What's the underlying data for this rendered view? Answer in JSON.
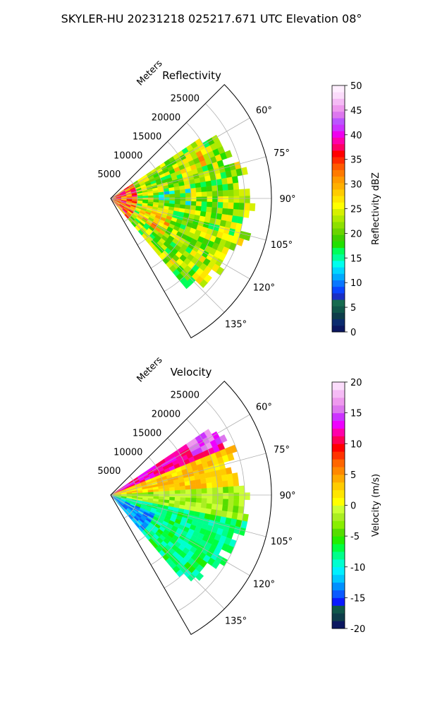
{
  "figure": {
    "title": "SKYLER-HU  20231218  025217.671 UTC Elevation 08°"
  },
  "colors": {
    "reflectivity_scale": [
      "#0b1760",
      "#0b2b6e",
      "#0e3d4a",
      "#10574a",
      "#166b4f",
      "#1a2fc4",
      "#0a46ff",
      "#0a77ff",
      "#00aaff",
      "#00d6ff",
      "#00ffee",
      "#00ff9a",
      "#00ff5a",
      "#22e000",
      "#3fd000",
      "#6ad400",
      "#8de000",
      "#b0ea00",
      "#d6f000",
      "#ffff00",
      "#ffe600",
      "#ffcc00",
      "#ffb000",
      "#ff9a00",
      "#ff7a00",
      "#ff5a00",
      "#ff2a00",
      "#ff0000",
      "#ff0066",
      "#ff00aa",
      "#ee00ee",
      "#cc33ff",
      "#bb55ff",
      "#dd77ee",
      "#ee99ee",
      "#f5bbf5",
      "#fbdcfb",
      "#ffeeff"
    ],
    "velocity_scale": [
      "#0b1760",
      "#0e3d4a",
      "#10574a",
      "#0a1aff",
      "#0a5aff",
      "#0090ff",
      "#00c8ff",
      "#00f0ff",
      "#00ffd0",
      "#00ff8a",
      "#00ff40",
      "#22ee00",
      "#55dd00",
      "#88ee00",
      "#aaee22",
      "#ccff33",
      "#ffff00",
      "#ffe600",
      "#ffcc00",
      "#ffaa00",
      "#ff8800",
      "#ff6600",
      "#ff3300",
      "#ff0000",
      "#ff0055",
      "#ff00aa",
      "#ee00ff",
      "#cc33ff",
      "#dd77ee",
      "#ee99ee",
      "#f5bbf5",
      "#fbdcfb"
    ]
  },
  "chart_data": [
    {
      "type": "heatmap",
      "subtype": "polar-sector-ppi",
      "title": "Reflectivity",
      "radial_label": "Meters",
      "radial_ticks": [
        5000,
        10000,
        15000,
        20000,
        25000
      ],
      "radial_tick_labels": [
        "5000",
        "10000",
        "15000",
        "20000",
        "25000"
      ],
      "rmax": 30000,
      "angle_range_deg": [
        45,
        150
      ],
      "angle_ticks_deg": [
        60,
        75,
        90,
        105,
        120,
        135
      ],
      "angle_tick_labels": [
        "60°",
        "75°",
        "90°",
        "105°",
        "120°",
        "135°"
      ],
      "grid": true,
      "colorbar": {
        "label": "Reflectivity dBZ",
        "min": 0,
        "max": 50,
        "ticks": [
          0,
          5,
          10,
          15,
          20,
          25,
          30,
          35,
          40,
          45,
          50
        ],
        "tick_labels": [
          "0",
          "5",
          "10",
          "15",
          "20",
          "25",
          "30",
          "35",
          "40",
          "45",
          "50"
        ],
        "placement": "right"
      },
      "field": {
        "echo_azimuth_range_deg": [
          56,
          140
        ],
        "echo_max_range_m": 26000,
        "typical_value": 22,
        "near_range_value": 33,
        "value_range": [
          14,
          36
        ]
      }
    },
    {
      "type": "heatmap",
      "subtype": "polar-sector-ppi",
      "title": "Velocity",
      "radial_label": "Meters",
      "radial_ticks": [
        5000,
        10000,
        15000,
        20000,
        25000
      ],
      "radial_tick_labels": [
        "5000",
        "10000",
        "15000",
        "20000",
        "25000"
      ],
      "rmax": 30000,
      "angle_range_deg": [
        45,
        150
      ],
      "angle_ticks_deg": [
        60,
        75,
        90,
        105,
        120,
        135
      ],
      "angle_tick_labels": [
        "60°",
        "75°",
        "90°",
        "105°",
        "120°",
        "135°"
      ],
      "grid": true,
      "colorbar": {
        "label": "Velocity (m/s)",
        "min": -20,
        "max": 20,
        "ticks": [
          -20,
          -15,
          -10,
          -5,
          0,
          5,
          10,
          15,
          20
        ],
        "tick_labels": [
          "-20",
          "-15",
          "-10",
          "-5",
          "0",
          "5",
          "10",
          "15",
          "20"
        ],
        "placement": "right"
      },
      "field": {
        "echo_azimuth_range_deg": [
          56,
          140
        ],
        "echo_max_range_m": 26000,
        "north_side_value": 12,
        "mid_value": 3,
        "east_value": -2,
        "south_side_value": -8,
        "near_range_south_value": -13,
        "value_range": [
          -13,
          16
        ]
      }
    }
  ]
}
